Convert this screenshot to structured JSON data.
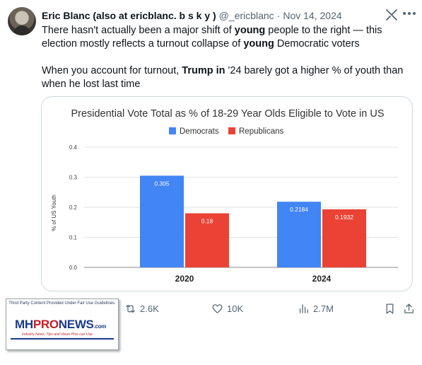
{
  "tweet": {
    "author_name": "Eric Blanc (also at ericblanc. b s k y )",
    "handle": "@_ericblanc",
    "separator": "·",
    "date": "Nov 14, 2024",
    "paragraph1": {
      "t1": "There hasn't actually been a major shift of ",
      "b1": "young",
      "t2": " people to the right — this election mostly reflects a turnout collapse of ",
      "b2": "young",
      "t3": " Democratic voters"
    },
    "paragraph2": {
      "t1": "When you account for turnout, ",
      "b1": "Trump in",
      "t2": " '24 barely got a higher % of youth than when he lost last time"
    }
  },
  "icons": {
    "grok": "grok-icon",
    "more": "more-icon",
    "retweet": "retweet-icon",
    "like": "heart-icon",
    "views": "views-icon",
    "bookmark": "bookmark-icon",
    "share": "share-icon"
  },
  "actions": {
    "retweets": "2.6K",
    "likes": "10K",
    "views": "2.7M"
  },
  "watermark": {
    "top_text": "Third Party Content Provided Under Fair Use Guidelines.",
    "logo_mh": "MH",
    "logo_pro": "PRO",
    "logo_news": "NEWS",
    "logo_com": ".com",
    "tagline": "Industry News, Tips and Views Pros can Use."
  },
  "colors": {
    "democrats": "#4285f4",
    "republicans": "#ea4335",
    "secondary_text": "#536471"
  },
  "chart_data": {
    "type": "bar",
    "title": "Presidential Vote Total as % of 18-29 Year Olds Eligible to Vote in US",
    "xlabel": "",
    "ylabel": "% of US Youth",
    "categories": [
      "2020",
      "2024"
    ],
    "series": [
      {
        "name": "Democrats",
        "values": [
          0.305,
          0.2184
        ],
        "labels": [
          "0.305",
          "0.2184"
        ],
        "color": "#4285f4"
      },
      {
        "name": "Republicans",
        "values": [
          0.18,
          0.1932
        ],
        "labels": [
          "0.18",
          "0.1932"
        ],
        "color": "#ea4335"
      }
    ],
    "ylim": [
      0,
      0.4
    ],
    "yticks": [
      "0.0",
      "0.1",
      "0.2",
      "0.3",
      "0.4"
    ],
    "grid": true,
    "legend": "top"
  }
}
